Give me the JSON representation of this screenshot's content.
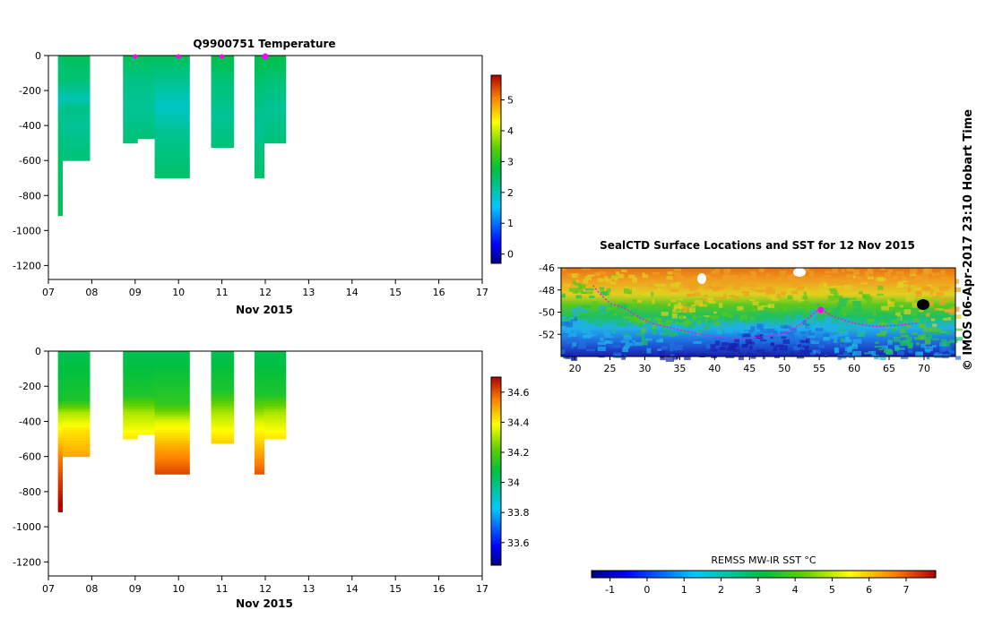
{
  "chart_data": [
    {
      "type": "heatmap",
      "title": "Q9900751  Temperature",
      "xlabel": "Nov 2015",
      "ylabel": "",
      "x_ticks": [
        "07",
        "08",
        "09",
        "10",
        "11",
        "12",
        "13",
        "14",
        "15",
        "16",
        "17"
      ],
      "y_ticks": [
        0,
        -200,
        -400,
        -600,
        -800,
        -1000,
        -1200
      ],
      "xlim": [
        7.0,
        17.0
      ],
      "ylim": [
        -1280,
        0
      ],
      "colorbar": {
        "min": -0.3,
        "max": 5.8,
        "ticks": [
          0,
          1,
          2,
          3,
          4,
          5
        ]
      },
      "profiles": [
        {
          "x0": 7.22,
          "x1": 7.32,
          "depth": -915,
          "values": [
            [
              0,
              2.4
            ],
            [
              -150,
              2.4
            ],
            [
              -250,
              2.0
            ],
            [
              -350,
              2.3
            ],
            [
              -600,
              2.5
            ],
            [
              -915,
              2.6
            ]
          ]
        },
        {
          "x0": 7.32,
          "x1": 7.95,
          "depth": -600,
          "values": [
            [
              0,
              2.6
            ],
            [
              -150,
              2.4
            ],
            [
              -250,
              2.0
            ],
            [
              -300,
              2.3
            ],
            [
              -400,
              2.2
            ],
            [
              -600,
              2.4
            ]
          ]
        },
        {
          "x0": 8.72,
          "x1": 9.05,
          "depth": -500,
          "values": [
            [
              0,
              2.6
            ],
            [
              -150,
              2.3
            ],
            [
              -300,
              2.2
            ],
            [
              -500,
              2.4
            ]
          ]
        },
        {
          "x0": 9.05,
          "x1": 9.45,
          "depth": -475,
          "values": [
            [
              0,
              2.6
            ],
            [
              -150,
              2.3
            ],
            [
              -300,
              2.2
            ],
            [
              -475,
              2.4
            ]
          ]
        },
        {
          "x0": 9.45,
          "x1": 10.25,
          "depth": -700,
          "values": [
            [
              0,
              2.6
            ],
            [
              -200,
              2.1
            ],
            [
              -300,
              1.9
            ],
            [
              -420,
              2.2
            ],
            [
              -700,
              2.5
            ]
          ]
        },
        {
          "x0": 10.75,
          "x1": 11.27,
          "depth": -525,
          "values": [
            [
              0,
              2.7
            ],
            [
              -150,
              2.4
            ],
            [
              -350,
              2.2
            ],
            [
              -525,
              2.4
            ]
          ]
        },
        {
          "x0": 11.75,
          "x1": 11.97,
          "depth": -700,
          "values": [
            [
              0,
              2.7
            ],
            [
              -200,
              2.4
            ],
            [
              -400,
              2.2
            ],
            [
              -700,
              2.5
            ]
          ]
        },
        {
          "x0": 11.97,
          "x1": 12.47,
          "depth": -500,
          "values": [
            [
              0,
              2.7
            ],
            [
              -150,
              2.4
            ],
            [
              -300,
              2.2
            ],
            [
              -500,
              2.4
            ]
          ]
        }
      ],
      "surface_markers": [
        9.0,
        10.0,
        11.0,
        12.0
      ]
    },
    {
      "type": "heatmap",
      "title": "",
      "xlabel": "Nov 2015",
      "ylabel": "",
      "x_ticks": [
        "07",
        "08",
        "09",
        "10",
        "11",
        "12",
        "13",
        "14",
        "15",
        "16",
        "17"
      ],
      "y_ticks": [
        0,
        -200,
        -400,
        -600,
        -800,
        -1000,
        -1200
      ],
      "xlim": [
        7.0,
        17.0
      ],
      "ylim": [
        -1280,
        0
      ],
      "colorbar": {
        "min": 33.45,
        "max": 34.7,
        "ticks": [
          33.6,
          33.8,
          34,
          34.2,
          34.4,
          34.6
        ]
      },
      "profiles": [
        {
          "x0": 7.22,
          "x1": 7.32,
          "depth": -915,
          "values": [
            [
              0,
              34.05
            ],
            [
              -280,
              34.1
            ],
            [
              -350,
              34.3
            ],
            [
              -500,
              34.45
            ],
            [
              -600,
              34.55
            ],
            [
              -915,
              34.72
            ]
          ]
        },
        {
          "x0": 7.32,
          "x1": 7.95,
          "depth": -600,
          "values": [
            [
              0,
              34.05
            ],
            [
              -280,
              34.12
            ],
            [
              -350,
              34.3
            ],
            [
              -450,
              34.42
            ],
            [
              -600,
              34.5
            ]
          ]
        },
        {
          "x0": 8.72,
          "x1": 9.05,
          "depth": -500,
          "values": [
            [
              0,
              34.05
            ],
            [
              -250,
              34.12
            ],
            [
              -350,
              34.3
            ],
            [
              -500,
              34.42
            ]
          ]
        },
        {
          "x0": 9.05,
          "x1": 9.45,
          "depth": -475,
          "values": [
            [
              0,
              34.05
            ],
            [
              -250,
              34.12
            ],
            [
              -350,
              34.3
            ],
            [
              -475,
              34.4
            ]
          ]
        },
        {
          "x0": 9.45,
          "x1": 10.25,
          "depth": -700,
          "values": [
            [
              0,
              34.05
            ],
            [
              -300,
              34.15
            ],
            [
              -400,
              34.35
            ],
            [
              -550,
              34.5
            ],
            [
              -700,
              34.62
            ]
          ]
        },
        {
          "x0": 10.75,
          "x1": 11.27,
          "depth": -525,
          "values": [
            [
              0,
              34.05
            ],
            [
              -230,
              34.12
            ],
            [
              -350,
              34.3
            ],
            [
              -525,
              34.45
            ]
          ]
        },
        {
          "x0": 11.75,
          "x1": 11.97,
          "depth": -700,
          "values": [
            [
              0,
              34.05
            ],
            [
              -250,
              34.12
            ],
            [
              -400,
              34.35
            ],
            [
              -700,
              34.6
            ]
          ]
        },
        {
          "x0": 11.97,
          "x1": 12.47,
          "depth": -500,
          "values": [
            [
              0,
              34.05
            ],
            [
              -250,
              34.12
            ],
            [
              -350,
              34.3
            ],
            [
              -500,
              34.42
            ]
          ]
        }
      ],
      "surface_markers": []
    },
    {
      "type": "heatmap",
      "title": "SealCTD Surface Locations and SST for 12 Nov 2015",
      "xlabel": "",
      "ylabel": "",
      "x_ticks": [
        20,
        25,
        30,
        35,
        40,
        45,
        50,
        55,
        60,
        65,
        70
      ],
      "y_ticks": [
        -46,
        -48,
        -50,
        -52
      ],
      "xlim": [
        18,
        74.5
      ],
      "ylim": [
        -54,
        -46
      ],
      "colorbar": {
        "label": "REMSS MW-IR SST °C",
        "min": -1.5,
        "max": 7.8,
        "ticks": [
          -1,
          0,
          1,
          2,
          3,
          4,
          5,
          6,
          7
        ]
      },
      "track_lon": [
        22.6,
        23.5,
        25,
        27,
        29,
        31,
        33,
        35,
        38,
        41,
        44,
        47,
        50,
        52,
        53.5,
        55,
        57,
        60,
        63,
        66,
        69
      ],
      "track_lat": [
        -47.6,
        -48.3,
        -49.2,
        -49.6,
        -50.4,
        -51.0,
        -51.3,
        -51.6,
        -52.0,
        -52.3,
        -52.4,
        -52.2,
        -51.9,
        -51.2,
        -50.5,
        -49.7,
        -50.4,
        -51.0,
        -51.3,
        -51.2,
        -51.0
      ],
      "highlight": {
        "lon": 55.2,
        "lat": -49.8
      }
    }
  ],
  "footer": {
    "credit": "© IMOS 06-Apr-2017 23:10 Hobart Time"
  }
}
